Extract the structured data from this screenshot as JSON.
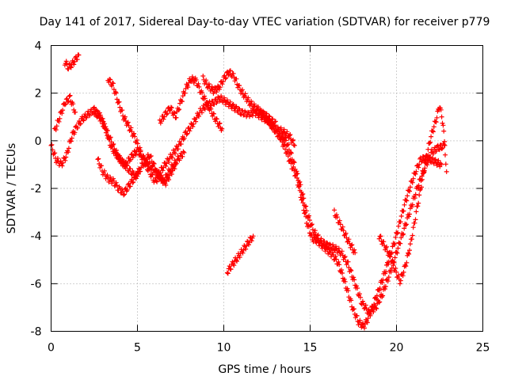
{
  "chart_data": {
    "type": "scatter",
    "title": "Day 141 of 2017, Sidereal Day-to-day VTEC variation (SDTVAR) for receiver p779",
    "xlabel": "GPS time / hours",
    "ylabel": "SDTVAR / TECUs",
    "xlim": [
      0,
      25
    ],
    "ylim": [
      -8,
      4
    ],
    "xticks": [
      0,
      5,
      10,
      15,
      20,
      25
    ],
    "yticks": [
      -8,
      -6,
      -4,
      -2,
      0,
      2,
      4
    ],
    "xtick_labels": [
      "0",
      "5",
      "10",
      "15",
      "20",
      "25"
    ],
    "ytick_labels": [
      "-8",
      "-6",
      "-4",
      "-2",
      "0",
      "2",
      "4"
    ],
    "grid": true,
    "marker": "plus",
    "color": "#ff0000",
    "series": [
      {
        "name": "sat-track-1",
        "x": [
          0.0,
          0.3,
          0.6,
          0.9,
          1.2,
          1.5,
          1.8,
          2.1,
          2.5,
          2.9,
          3.2,
          3.5,
          3.8,
          4.1,
          4.5,
          4.9,
          5.3,
          5.7,
          6.1,
          6.5,
          6.9,
          7.3,
          7.7
        ],
        "y": [
          -0.2,
          -0.8,
          -1.0,
          -0.6,
          0.2,
          0.6,
          0.9,
          1.1,
          1.3,
          1.0,
          0.4,
          -0.3,
          -0.6,
          -0.9,
          -1.2,
          -1.5,
          -1.0,
          -0.6,
          -1.3,
          -1.7,
          -1.2,
          -0.8,
          -0.5
        ]
      },
      {
        "name": "sat-track-2",
        "x": [
          0.2,
          0.5,
          0.8,
          1.1,
          1.4
        ],
        "y": [
          0.4,
          1.0,
          1.6,
          1.8,
          1.2
        ]
      },
      {
        "name": "sat-track-3",
        "x": [
          0.8,
          1.0,
          1.2,
          1.4,
          1.6
        ],
        "y": [
          3.3,
          3.1,
          3.2,
          3.4,
          3.6
        ]
      },
      {
        "name": "sat-track-4",
        "x": [
          2.5,
          2.8,
          3.1,
          3.4,
          3.7,
          4.0,
          4.3,
          4.6,
          5.0,
          5.4,
          5.8,
          6.2,
          6.6,
          7.0,
          7.4,
          7.8,
          8.2,
          8.6,
          9.0,
          9.4,
          9.8,
          10.2,
          10.6,
          11.0,
          11.4,
          11.8,
          12.2,
          12.6,
          13.0,
          13.4,
          13.8,
          14.1
        ],
        "y": [
          1.2,
          1.0,
          0.6,
          0.1,
          -0.4,
          -0.8,
          -1.0,
          -0.7,
          -0.4,
          -0.8,
          -1.1,
          -1.4,
          -1.0,
          -0.6,
          -0.2,
          0.3,
          0.7,
          1.2,
          1.5,
          1.6,
          1.8,
          1.6,
          1.4,
          1.2,
          1.1,
          1.2,
          1.0,
          0.8,
          0.5,
          0.4,
          0.2,
          -0.2
        ]
      },
      {
        "name": "sat-track-5",
        "x": [
          3.3,
          3.6,
          3.9,
          4.2,
          4.5,
          4.8,
          5.1,
          5.4,
          5.7,
          6.0,
          6.3,
          6.6,
          6.9,
          7.2
        ],
        "y": [
          2.6,
          2.3,
          1.6,
          1.0,
          0.6,
          0.2,
          -0.3,
          -0.9,
          -1.3,
          -1.7,
          -1.5,
          -1.8,
          -1.4,
          -1.0
        ]
      },
      {
        "name": "sat-track-6",
        "x": [
          2.7,
          3.0,
          3.3,
          3.6,
          3.9,
          4.2,
          4.5,
          4.8,
          5.1
        ],
        "y": [
          -0.8,
          -1.3,
          -1.6,
          -1.7,
          -2.0,
          -2.2,
          -1.9,
          -1.6,
          -1.3
        ]
      },
      {
        "name": "sat-track-7",
        "x": [
          6.3,
          6.6,
          6.9,
          7.2,
          7.5,
          7.8,
          8.1,
          8.4,
          8.7,
          9.0,
          9.3,
          9.6,
          9.9
        ],
        "y": [
          0.8,
          1.1,
          1.4,
          1.0,
          1.6,
          2.2,
          2.6,
          2.5,
          2.0,
          1.6,
          1.2,
          0.8,
          0.5
        ]
      },
      {
        "name": "sat-track-8",
        "x": [
          8.8,
          9.1,
          9.4,
          9.7,
          10.0,
          10.3,
          10.6,
          10.9,
          11.2,
          11.5,
          11.8,
          12.1,
          12.4,
          12.7,
          13.0,
          13.3,
          13.6,
          13.9,
          14.2,
          14.5,
          14.8,
          15.1,
          15.4,
          15.7,
          16.0,
          16.3,
          16.6,
          16.9,
          17.2,
          17.5,
          17.8,
          18.1,
          18.4,
          18.7,
          19.0,
          19.3,
          19.6,
          19.9,
          20.2,
          20.5,
          20.8,
          21.1,
          21.4,
          21.7,
          22.0,
          22.3,
          22.6
        ],
        "y": [
          2.6,
          2.3,
          2.1,
          2.2,
          2.6,
          2.9,
          2.7,
          2.2,
          1.9,
          1.6,
          1.4,
          1.2,
          1.1,
          0.9,
          0.7,
          0.1,
          -0.4,
          -1.0,
          -1.5,
          -2.4,
          -3.4,
          -4.1,
          -4.2,
          -4.4,
          -4.6,
          -4.8,
          -5.1,
          -5.7,
          -6.4,
          -7.1,
          -7.6,
          -7.8,
          -7.4,
          -6.8,
          -6.2,
          -5.6,
          -4.9,
          -4.2,
          -3.4,
          -2.6,
          -1.9,
          -1.3,
          -0.8,
          -0.7,
          -0.8,
          -0.9,
          -1.0
        ]
      },
      {
        "name": "sat-track-9",
        "x": [
          10.2,
          10.5,
          10.8,
          11.1,
          11.4,
          11.7
        ],
        "y": [
          -5.5,
          -5.2,
          -4.9,
          -4.6,
          -4.3,
          -4.0
        ]
      },
      {
        "name": "sat-track-10",
        "x": [
          12.0,
          12.4,
          12.8,
          13.2,
          13.6,
          14.0,
          14.4,
          14.8,
          15.2,
          15.6,
          16.0,
          16.4,
          16.8,
          17.2,
          17.6,
          18.0,
          18.4,
          18.8,
          19.2,
          19.6,
          20.0,
          20.4,
          20.8,
          21.2,
          21.6,
          22.0,
          22.4,
          22.8
        ],
        "y": [
          1.3,
          1.0,
          0.6,
          0.2,
          0.0,
          -0.8,
          -1.8,
          -3.0,
          -3.8,
          -4.2,
          -4.4,
          -4.5,
          -4.7,
          -5.2,
          -6.0,
          -6.8,
          -7.2,
          -7.0,
          -6.4,
          -5.6,
          -4.7,
          -3.8,
          -2.9,
          -2.0,
          -1.2,
          -0.5,
          -0.3,
          -0.2
        ]
      },
      {
        "name": "sat-track-11",
        "x": [
          16.4,
          16.8,
          17.2,
          17.6
        ],
        "y": [
          -3.0,
          -3.6,
          -4.2,
          -4.7
        ]
      },
      {
        "name": "sat-track-12",
        "x": [
          19.0,
          19.3,
          19.6,
          19.9,
          20.2,
          20.5,
          20.8,
          21.1,
          21.4,
          21.7,
          22.0,
          22.3,
          22.5,
          22.7,
          22.9
        ],
        "y": [
          -4.0,
          -4.4,
          -4.8,
          -5.4,
          -5.9,
          -5.3,
          -4.4,
          -3.2,
          -2.0,
          -0.8,
          0.2,
          0.9,
          1.5,
          0.7,
          -1.3
        ]
      }
    ]
  }
}
